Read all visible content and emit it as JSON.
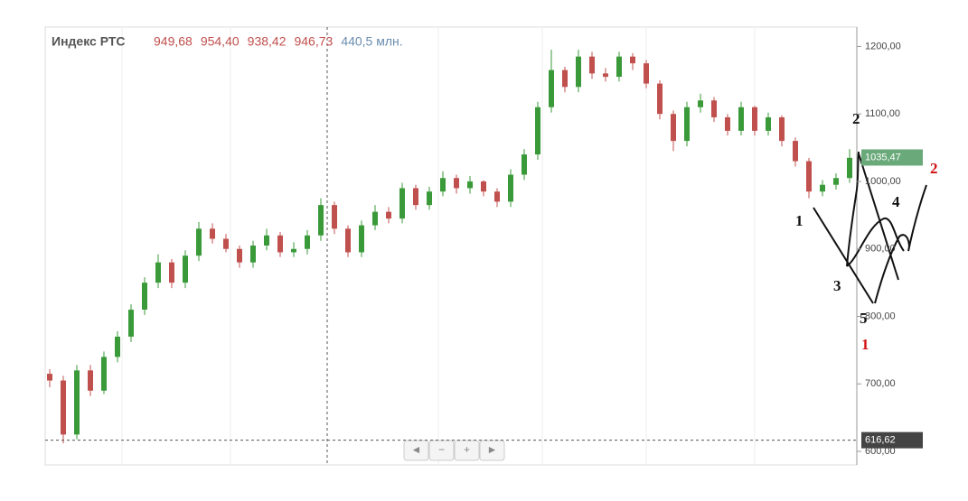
{
  "chart_data": {
    "type": "candlestick",
    "title": "Индекс РТС",
    "header_values": [
      "949,68",
      "954,40",
      "938,42",
      "946,73"
    ],
    "volume": "440,5 млн.",
    "up_color": "#3a9a3a",
    "down_color": "#c0504d",
    "open": [
      715,
      705,
      625,
      720,
      690,
      740,
      770,
      810,
      850,
      880,
      850,
      890,
      930,
      915,
      900,
      880,
      905,
      920,
      895,
      900,
      920,
      965,
      930,
      895,
      935,
      955,
      945,
      990,
      965,
      985,
      1005,
      990,
      1000,
      985,
      970,
      1010,
      1040,
      1110,
      1165,
      1140,
      1185,
      1160,
      1155,
      1185,
      1175,
      1145,
      1100,
      1060,
      1110,
      1120,
      1095,
      1075,
      1110,
      1075,
      1095,
      1060,
      1030,
      985,
      995,
      1005
    ],
    "high": [
      722,
      712,
      728,
      728,
      748,
      778,
      818,
      858,
      892,
      885,
      898,
      940,
      938,
      922,
      905,
      912,
      930,
      925,
      910,
      928,
      975,
      970,
      935,
      942,
      965,
      962,
      998,
      995,
      992,
      1015,
      1010,
      1008,
      1002,
      990,
      1018,
      1048,
      1118,
      1195,
      1170,
      1195,
      1192,
      1168,
      1192,
      1190,
      1180,
      1150,
      1105,
      1118,
      1130,
      1125,
      1100,
      1118,
      1112,
      1102,
      1098,
      1065,
      1035,
      1002,
      1012,
      1048
    ],
    "low": [
      695,
      612,
      618,
      682,
      685,
      732,
      762,
      802,
      842,
      842,
      842,
      882,
      908,
      895,
      872,
      872,
      898,
      888,
      888,
      892,
      912,
      922,
      888,
      888,
      928,
      938,
      938,
      958,
      958,
      978,
      982,
      982,
      978,
      962,
      962,
      1002,
      1032,
      1102,
      1132,
      1132,
      1152,
      1148,
      1148,
      1165,
      1138,
      1092,
      1045,
      1052,
      1102,
      1088,
      1068,
      1068,
      1068,
      1068,
      1052,
      1022,
      975,
      978,
      988,
      998
    ],
    "close": [
      705,
      625,
      720,
      690,
      740,
      770,
      810,
      850,
      880,
      850,
      890,
      930,
      915,
      900,
      880,
      905,
      920,
      895,
      900,
      920,
      965,
      930,
      895,
      935,
      955,
      945,
      990,
      965,
      985,
      1005,
      990,
      1000,
      985,
      970,
      1010,
      1040,
      1110,
      1165,
      1140,
      1185,
      1160,
      1155,
      1185,
      1175,
      1145,
      1100,
      1060,
      1110,
      1120,
      1095,
      1075,
      1110,
      1075,
      1095,
      1060,
      1030,
      985,
      995,
      1005,
      1035
    ],
    "ylim": [
      580,
      1222
    ],
    "yticks": [
      {
        "value": 600,
        "label": "600,00"
      },
      {
        "value": 700,
        "label": "700,00"
      },
      {
        "value": 800,
        "label": "800,00"
      },
      {
        "value": 900,
        "label": "900,00"
      },
      {
        "value": 1000,
        "label": "1000,00"
      },
      {
        "value": 1100,
        "label": "1100,00"
      },
      {
        "value": 1200,
        "label": "1200,00"
      }
    ],
    "last_price": {
      "value": 1035.47,
      "label": "1035,47"
    },
    "crosshair_price": {
      "value": 616.62,
      "label": "616,62"
    },
    "annotations": [
      "2",
      "1",
      "4",
      "3",
      "5",
      "1",
      "2"
    ],
    "navigation": [
      "◄",
      "−",
      "+",
      "►"
    ]
  }
}
